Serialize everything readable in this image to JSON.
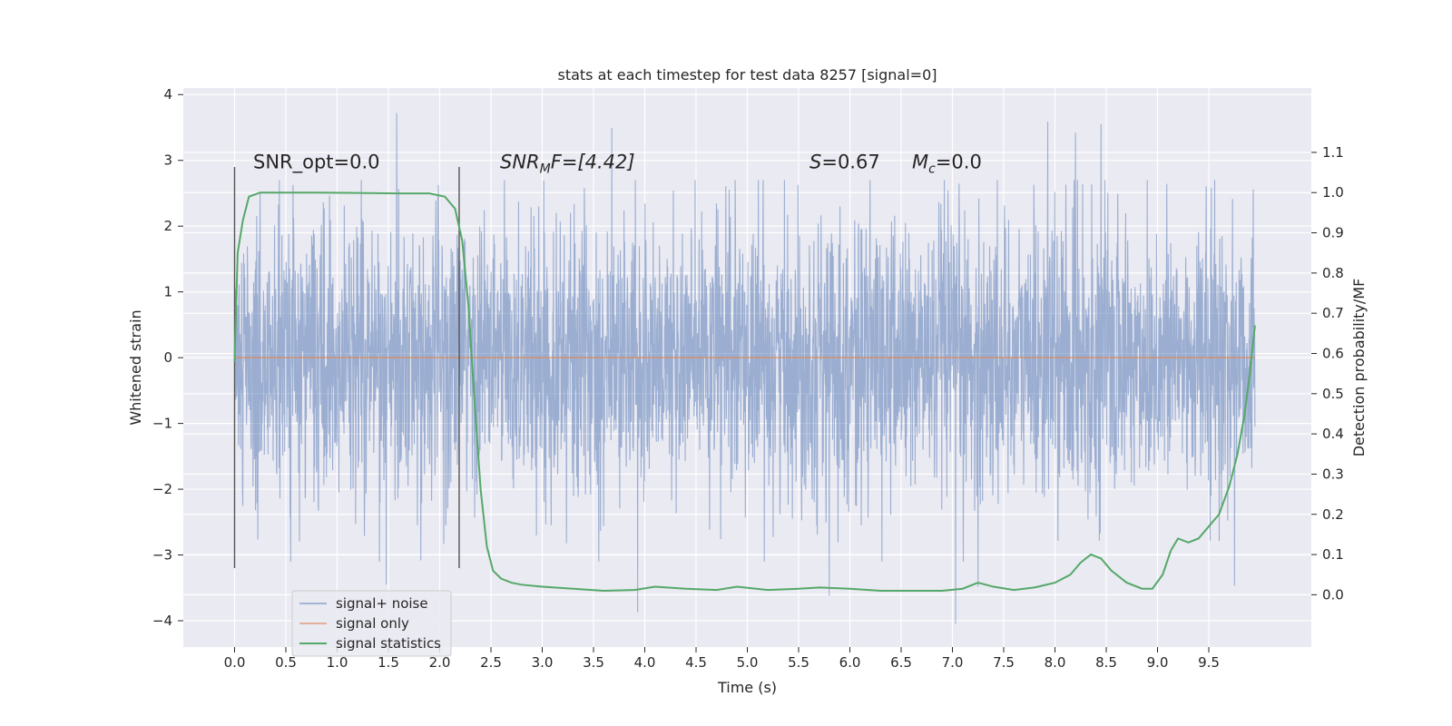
{
  "chart_data": {
    "type": "line",
    "title": "stats at each timestep for test data 8257 [signal=0]",
    "xlabel": "Time (s)",
    "ylabel": "Whitened strain",
    "y2label": "Detection probability/MF",
    "xlim": [
      -0.5,
      10.5
    ],
    "ylim": [
      -4.4,
      4.1
    ],
    "y2lim": [
      -0.13,
      1.26
    ],
    "grid": true,
    "legend_position": "lower-left",
    "x_ticks": [
      "0.0",
      "0.5",
      "1.0",
      "1.5",
      "2.0",
      "2.5",
      "3.0",
      "3.5",
      "4.0",
      "4.5",
      "5.0",
      "5.5",
      "6.0",
      "6.5",
      "7.0",
      "7.5",
      "8.0",
      "8.5",
      "9.0",
      "9.5"
    ],
    "y_ticks": [
      "4",
      "3",
      "2",
      "1",
      "0",
      "−1",
      "−2",
      "−3",
      "−4"
    ],
    "y2_ticks": [
      "1.1",
      "1.0",
      "0.9",
      "0.8",
      "0.7",
      "0.6",
      "0.5",
      "0.4",
      "0.3",
      "0.2",
      "0.1",
      "0.0"
    ],
    "annotations": {
      "snr_opt": "SNR_opt=0.0",
      "snr_mf_main": "SNR",
      "snr_mf_sub": "M",
      "snr_mf_rest": "F=[4.42]",
      "s_main": "S",
      "s_rest": "=0.67",
      "mc_main": "M",
      "mc_sub": "c",
      "mc_rest": "=0.0"
    },
    "vlines": [
      0.0,
      2.19
    ],
    "noise_series": {
      "name": "signal+ noise",
      "color": "#4c72b0",
      "x_range": [
        0.0,
        9.95
      ],
      "envelope": {
        "upper_typical": 2.7,
        "lower_typical": -2.7,
        "peak_max": 3.72,
        "trough_min": -4.05
      },
      "notable_peaks": [
        {
          "x": 1.58,
          "y": 3.72
        },
        {
          "x": 3.68,
          "y": 3.49
        },
        {
          "x": 7.93,
          "y": 3.59
        },
        {
          "x": 8.45,
          "y": 3.55
        },
        {
          "x": 8.2,
          "y": 3.42
        },
        {
          "x": 9.75,
          "y": 3.28
        },
        {
          "x": 3.93,
          "y": -3.87
        },
        {
          "x": 7.03,
          "y": -4.05
        },
        {
          "x": 9.75,
          "y": -3.47
        },
        {
          "x": 5.8,
          "y": -3.62
        },
        {
          "x": 1.48,
          "y": -3.45
        },
        {
          "x": 7.25,
          "y": -3.48
        }
      ]
    },
    "signal_only": {
      "name": "signal only",
      "color": "#dd8452",
      "x_range": [
        0.0,
        9.95
      ],
      "value": 0.0
    },
    "signal_statistics": {
      "name": "signal statistics",
      "color": "#55a868",
      "x": [
        0.0,
        0.03,
        0.08,
        0.14,
        0.25,
        0.4,
        0.8,
        1.2,
        1.6,
        1.9,
        2.05,
        2.15,
        2.22,
        2.28,
        2.34,
        2.4,
        2.46,
        2.52,
        2.6,
        2.7,
        2.8,
        3.0,
        3.3,
        3.6,
        3.9,
        4.1,
        4.4,
        4.7,
        4.9,
        5.2,
        5.5,
        5.7,
        6.0,
        6.3,
        6.6,
        6.9,
        7.1,
        7.25,
        7.4,
        7.6,
        7.8,
        8.0,
        8.15,
        8.25,
        8.35,
        8.45,
        8.55,
        8.7,
        8.85,
        8.95,
        9.05,
        9.13,
        9.2,
        9.3,
        9.4,
        9.5,
        9.6,
        9.7,
        9.78,
        9.85,
        9.9,
        9.95
      ],
      "y": [
        0.58,
        0.85,
        0.93,
        0.99,
        1.0,
        1.0,
        1.0,
        0.999,
        0.998,
        0.998,
        0.99,
        0.96,
        0.88,
        0.72,
        0.48,
        0.26,
        0.12,
        0.06,
        0.04,
        0.03,
        0.025,
        0.02,
        0.015,
        0.01,
        0.012,
        0.02,
        0.015,
        0.012,
        0.02,
        0.012,
        0.015,
        0.018,
        0.015,
        0.01,
        0.01,
        0.01,
        0.015,
        0.03,
        0.02,
        0.012,
        0.018,
        0.03,
        0.05,
        0.08,
        0.1,
        0.09,
        0.06,
        0.03,
        0.015,
        0.015,
        0.05,
        0.11,
        0.14,
        0.13,
        0.14,
        0.17,
        0.2,
        0.27,
        0.35,
        0.45,
        0.55,
        0.67
      ]
    }
  }
}
